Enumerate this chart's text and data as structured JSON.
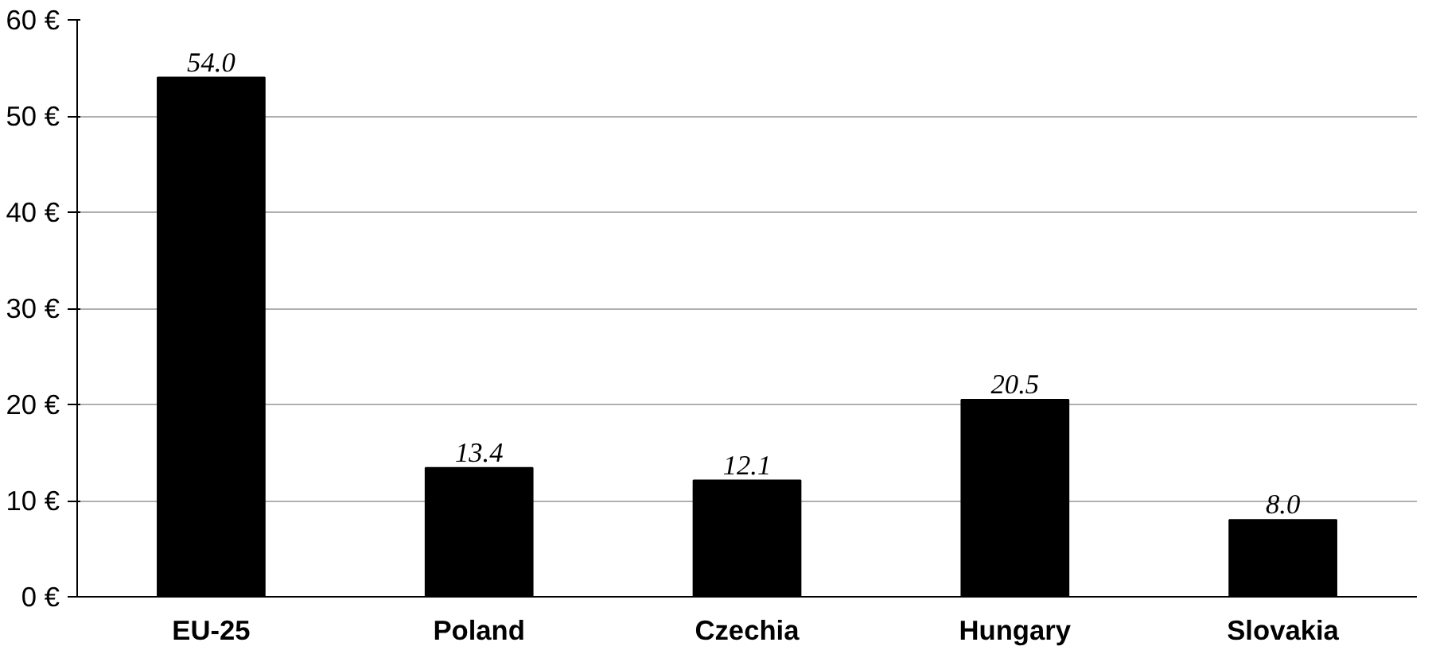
{
  "chart_data": {
    "type": "bar",
    "categories": [
      "EU-25",
      "Poland",
      "Czechia",
      "Hungary",
      "Slovakia"
    ],
    "values": [
      54.0,
      13.4,
      12.1,
      20.5,
      8.0
    ],
    "value_labels": [
      "54.0",
      "13.4",
      "12.1",
      "20.5",
      "8.0"
    ],
    "color": "#000000",
    "ylim": [
      0,
      60
    ],
    "yticks": [
      {
        "value": 0,
        "label": "0 €"
      },
      {
        "value": 10,
        "label": "10 €"
      },
      {
        "value": 20,
        "label": "20 €"
      },
      {
        "value": 30,
        "label": "30 €"
      },
      {
        "value": 40,
        "label": "40 €"
      },
      {
        "value": 50,
        "label": "50 €"
      },
      {
        "value": 60,
        "label": "60 €"
      }
    ],
    "grid": "y"
  }
}
